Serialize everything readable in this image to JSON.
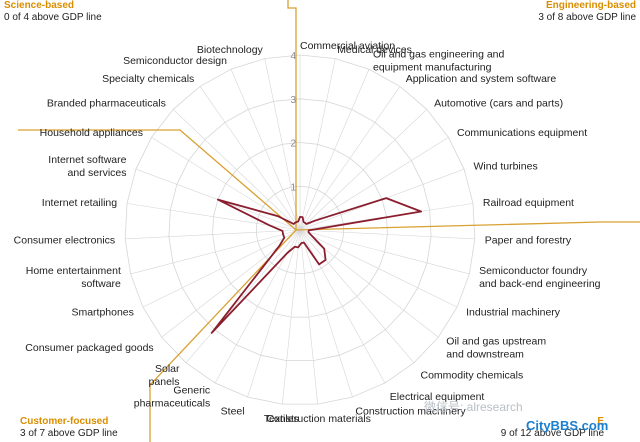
{
  "corners": {
    "top_left": {
      "title": "Science-based",
      "subtitle": "0 of 4 above GDP line"
    },
    "top_right": {
      "title": "Engineering-based",
      "subtitle": "3 of 8 above GDP line"
    },
    "bottom_left": {
      "title": "Customer-focused",
      "subtitle": "3 of 7 above GDP line"
    },
    "bottom_right": {
      "title": "E",
      "subtitle": "9 of 12 above GDP line"
    }
  },
  "watermark": {
    "text": "微信号: alresearch",
    "logo": "CityBBS.com"
  },
  "colors": {
    "series": "#8b1e2e",
    "divider": "#d9a032",
    "grid": "#d6d6d6",
    "axis_label": "#8c8c8c"
  },
  "chart_data": {
    "type": "radar",
    "rlim": [
      0,
      4
    ],
    "r_ticks": [
      "1",
      "2",
      "3",
      "4"
    ],
    "grid": true,
    "categories": [
      "Commercial aviation",
      "Medical devices",
      "Oil and gas engineering and equipment manufacturing",
      "Application and system software",
      "Automotive (cars and parts)",
      "Communications equipment",
      "Wind turbines",
      "Railroad equipment",
      "Paper and forestry",
      "Semiconductor foundry and back-end engineering",
      "Industrial machinery",
      "Oil and gas upstream and downstream",
      "Commodity chemicals",
      "Electrical equipment",
      "Construction machinery",
      "Construction materials",
      "Textiles",
      "Steel",
      "Generic pharmaceuticals",
      "Solar panels",
      "Consumer packaged goods",
      "Smartphones",
      "Home entertainment software",
      "Consumer electronics",
      "Internet retailing",
      "Internet software and services",
      "Household appliances",
      "Branded pharmaceuticals",
      "Specialty chemicals",
      "Semiconductor design",
      "Biotechnology"
    ],
    "display_labels": [
      "Commercial aviation",
      "Medical devices",
      "Oil and gas engineering and|equipment manufacturing",
      "Application and system software",
      "Automotive (cars and parts)",
      "Communications equipment",
      "Wind turbines",
      "Railroad equipment",
      "Paper and forestry",
      "Semiconductor foundry|and back-end engineering",
      "Industrial machinery",
      "Oil and gas upstream|and downstream",
      "Commodity chemicals",
      "Electrical equipment",
      "Construction machinery",
      "Construction materials",
      "Textiles",
      "Steel",
      "Generic|pharmaceuticals",
      "Solar|panels",
      "Consumer packaged goods",
      "Smartphones",
      "Home entertainment|software",
      "Consumer electronics",
      "Internet retailing",
      "Internet software|and services",
      "Household appliances",
      "Branded pharmaceuticals",
      "Specialty chemicals",
      "Semiconductor design",
      "Biotechnology"
    ],
    "series": [
      {
        "values": [
          0.3,
          0.3,
          0.2,
          0.2,
          0.2,
          0.4,
          2.1,
          2.8,
          0.2,
          0.2,
          0.3,
          0.7,
          0.9,
          0.9,
          0.3,
          0.3,
          0.4,
          0.4,
          0.6,
          3.1,
          0.6,
          0.4,
          0.4,
          0.4,
          0.7,
          2.0,
          0.6,
          0.2,
          0.2,
          0.2,
          0.2
        ]
      }
    ]
  }
}
